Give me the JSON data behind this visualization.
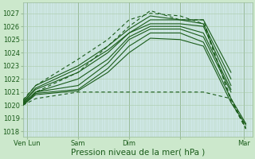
{
  "bg_color": "#cce8cc",
  "plot_bg_color": "#cce8e8",
  "grid_color_minor": "#aaccaa",
  "grid_color_major": "#99bb99",
  "line_color": "#1a5c1a",
  "xlabel": "Pression niveau de la mer( hPa )",
  "xlabel_fontsize": 7.5,
  "tick_fontsize": 6,
  "ytick_values": [
    1018,
    1019,
    1020,
    1021,
    1022,
    1023,
    1024,
    1025,
    1026,
    1027
  ],
  "ylim": [
    1017.6,
    1027.8
  ],
  "xlim": [
    0,
    216
  ],
  "xtick_positions": [
    4,
    52,
    100,
    148,
    208
  ],
  "xtick_labels": [
    "Ven Lun",
    "Sam",
    "Dim",
    "",
    "Mar"
  ],
  "lines_solid": [
    [
      [
        0,
        1020.0
      ],
      [
        12,
        1020.8
      ],
      [
        52,
        1021.1
      ],
      [
        80,
        1022.5
      ],
      [
        100,
        1024.0
      ],
      [
        120,
        1025.1
      ],
      [
        148,
        1025.0
      ],
      [
        170,
        1024.5
      ],
      [
        196,
        1020.2
      ],
      [
        210,
        1018.5
      ]
    ],
    [
      [
        0,
        1020.0
      ],
      [
        12,
        1020.9
      ],
      [
        52,
        1021.2
      ],
      [
        80,
        1022.8
      ],
      [
        100,
        1024.5
      ],
      [
        120,
        1025.5
      ],
      [
        148,
        1025.5
      ],
      [
        170,
        1024.8
      ],
      [
        196,
        1020.5
      ],
      [
        210,
        1018.6
      ]
    ],
    [
      [
        0,
        1020.1
      ],
      [
        12,
        1021.0
      ],
      [
        52,
        1021.5
      ],
      [
        80,
        1023.2
      ],
      [
        100,
        1025.0
      ],
      [
        120,
        1025.8
      ],
      [
        148,
        1025.8
      ],
      [
        170,
        1025.2
      ],
      [
        196,
        1021.0
      ]
    ],
    [
      [
        0,
        1020.1
      ],
      [
        12,
        1021.0
      ],
      [
        52,
        1022.0
      ],
      [
        80,
        1023.5
      ],
      [
        100,
        1025.2
      ],
      [
        120,
        1026.0
      ],
      [
        148,
        1026.0
      ],
      [
        170,
        1025.5
      ],
      [
        196,
        1021.2
      ]
    ],
    [
      [
        0,
        1020.2
      ],
      [
        12,
        1021.2
      ],
      [
        52,
        1022.5
      ],
      [
        80,
        1024.0
      ],
      [
        100,
        1025.5
      ],
      [
        120,
        1026.2
      ],
      [
        148,
        1026.2
      ],
      [
        170,
        1026.0
      ],
      [
        196,
        1021.5
      ]
    ],
    [
      [
        0,
        1020.2
      ],
      [
        12,
        1021.3
      ],
      [
        52,
        1022.8
      ],
      [
        80,
        1024.2
      ],
      [
        100,
        1025.5
      ],
      [
        120,
        1026.5
      ],
      [
        148,
        1026.5
      ],
      [
        170,
        1026.2
      ],
      [
        196,
        1022.0
      ]
    ],
    [
      [
        0,
        1020.3
      ],
      [
        12,
        1021.5
      ],
      [
        52,
        1023.0
      ],
      [
        80,
        1024.5
      ],
      [
        100,
        1025.8
      ],
      [
        120,
        1026.8
      ],
      [
        148,
        1026.5
      ],
      [
        170,
        1026.5
      ],
      [
        196,
        1022.5
      ]
    ]
  ],
  "lines_dashed": [
    [
      [
        0,
        1020.0
      ],
      [
        12,
        1020.5
      ],
      [
        52,
        1021.0
      ],
      [
        80,
        1021.0
      ],
      [
        100,
        1021.0
      ],
      [
        120,
        1021.0
      ],
      [
        148,
        1021.0
      ],
      [
        170,
        1021.0
      ],
      [
        196,
        1020.5
      ],
      [
        210,
        1018.3
      ]
    ],
    [
      [
        0,
        1020.1
      ],
      [
        12,
        1021.0
      ],
      [
        52,
        1022.5
      ],
      [
        80,
        1024.5
      ],
      [
        100,
        1026.0
      ],
      [
        120,
        1027.2
      ],
      [
        148,
        1026.5
      ],
      [
        170,
        1026.5
      ],
      [
        196,
        1020.3
      ],
      [
        210,
        1018.2
      ]
    ],
    [
      [
        0,
        1020.4
      ],
      [
        12,
        1021.5
      ],
      [
        52,
        1023.5
      ],
      [
        80,
        1025.0
      ],
      [
        100,
        1026.5
      ],
      [
        120,
        1027.0
      ],
      [
        148,
        1026.8
      ],
      [
        170,
        1026.2
      ],
      [
        196,
        1020.5
      ],
      [
        210,
        1018.2
      ]
    ]
  ]
}
